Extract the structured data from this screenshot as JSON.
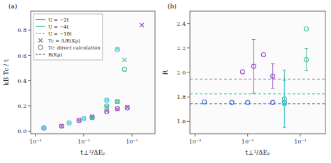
{
  "chart_data": [
    {
      "type": "scatter",
      "title": "(a)",
      "xlabel": "t⊥²/ΔEₚ",
      "ylabel": "kB Tc / t",
      "log": "x",
      "xlim": [
        0.0008,
        0.3
      ],
      "ylim": [
        -0.02,
        0.95
      ],
      "xticks": [
        {
          "value": 0.001,
          "label": "10⁻³"
        },
        {
          "value": 0.01,
          "label": "10⁻²"
        },
        {
          "value": 0.1,
          "label": "10⁻¹"
        }
      ],
      "yticks": [
        {
          "value": 0,
          "label": "0.0"
        },
        0.2,
        0.4,
        0.6,
        0.8
      ],
      "grid": false,
      "legend": "upper-left",
      "legend_entries": [
        {
          "label": "U = −2t",
          "color": "#9955bb",
          "line_style": "solid"
        },
        {
          "label": "U = −4t",
          "color": "#44bb99",
          "line_style": "solid"
        },
        {
          "label": "U = −10t",
          "color": "#55ccdd",
          "line_style": "dashed"
        },
        {
          "label": "Tc = Δ/R(Kρ)",
          "color": "#808080",
          "marker": "x"
        },
        {
          "label": "Tc: direct calculation",
          "color": "#808080",
          "marker": "circle"
        },
        {
          "label": "R(Kρ)",
          "color": "#808080",
          "line_style": "dashed"
        }
      ],
      "series": [
        {
          "color": "#9955bb",
          "marker": "x",
          "x": [
            0.0015,
            0.0035,
            0.008,
            0.015,
            0.03,
            0.05,
            0.08,
            0.16
          ],
          "values": [
            0.025,
            0.04,
            0.085,
            0.115,
            0.16,
            0.175,
            0.19,
            0.84
          ]
        },
        {
          "color": "#9955bb",
          "marker": "circle",
          "x": [
            0.0015,
            0.0035,
            0.008,
            0.015,
            0.03,
            0.05,
            0.08
          ],
          "values": [
            0.025,
            0.04,
            0.085,
            0.11,
            0.155,
            0.18,
            0.185
          ]
        },
        {
          "color": "#44bb99",
          "marker": "x",
          "x": [
            0.015,
            0.03,
            0.05,
            0.07
          ],
          "values": [
            0.105,
            0.195,
            0.235,
            0.565
          ]
        },
        {
          "color": "#44bb99",
          "marker": "circle",
          "x": [
            0.015,
            0.03,
            0.05,
            0.07
          ],
          "values": [
            0.11,
            0.2,
            0.235,
            0.49
          ]
        },
        {
          "color": "#55ccdd",
          "marker": "x",
          "x": [
            0.0015,
            0.005,
            0.01,
            0.03,
            0.05
          ],
          "values": [
            0.025,
            0.065,
            0.1,
            0.245,
            0.65
          ]
        },
        {
          "color": "#55ccdd",
          "marker": "circle",
          "x": [
            0.0015,
            0.005,
            0.01,
            0.03,
            0.05
          ],
          "values": [
            0.025,
            0.065,
            0.1,
            0.245,
            0.645
          ]
        }
      ]
    },
    {
      "type": "scatter",
      "title": "(b)",
      "xlabel": "t⊥²/ΔEₚ",
      "ylabel": "R",
      "log": "x",
      "xlim": [
        0.0008,
        0.3
      ],
      "ylim": [
        1.5,
        2.5
      ],
      "xticks": [
        {
          "value": 0.001,
          "label": "10⁻³"
        },
        {
          "value": 0.01,
          "label": "10⁻²"
        },
        {
          "value": 0.1,
          "label": "10⁻¹"
        }
      ],
      "yticks": [
        1.6,
        1.8,
        {
          "value": 2.0,
          "label": "2.0"
        },
        2.2,
        2.4
      ],
      "grid": false,
      "hlines": [
        {
          "y": 1.745,
          "color": "#4466cc",
          "line_style": "dashed"
        },
        {
          "y": 1.825,
          "color": "#44bb99",
          "line_style": "dashed"
        },
        {
          "y": 1.945,
          "color": "#9955bb",
          "line_style": "dashed"
        }
      ],
      "series": [
        {
          "color": "#9955bb",
          "marker": "circle",
          "x": [
            0.008,
            0.013,
            0.02,
            0.03
          ],
          "values": [
            2.005,
            2.05,
            2.145,
            1.97
          ],
          "errors": [
            0.0,
            0.22,
            0.0,
            0.1
          ]
        },
        {
          "color": "#4466cc",
          "marker": "circle",
          "x": [
            0.0015,
            0.005,
            0.01,
            0.03,
            0.05
          ],
          "values": [
            1.76,
            1.755,
            1.755,
            1.755,
            1.755
          ],
          "errors": [
            0.0,
            0.0,
            0.0,
            0.0,
            0.0
          ]
        },
        {
          "color": "#44bb99",
          "marker": "circle",
          "x": [
            0.05,
            0.13
          ],
          "values": [
            1.785,
            2.105
          ],
          "errors": [
            0.235,
            0.09
          ]
        },
        {
          "color": "#55ccdd",
          "marker": "circle",
          "x": [
            0.05
          ],
          "values": [
            1.745
          ],
          "errors": [
            0.19
          ]
        },
        {
          "color": "#44bb99",
          "marker": "circle",
          "x": [
            0.13
          ],
          "values": [
            2.355
          ],
          "errors": [
            0.0
          ]
        }
      ]
    }
  ]
}
